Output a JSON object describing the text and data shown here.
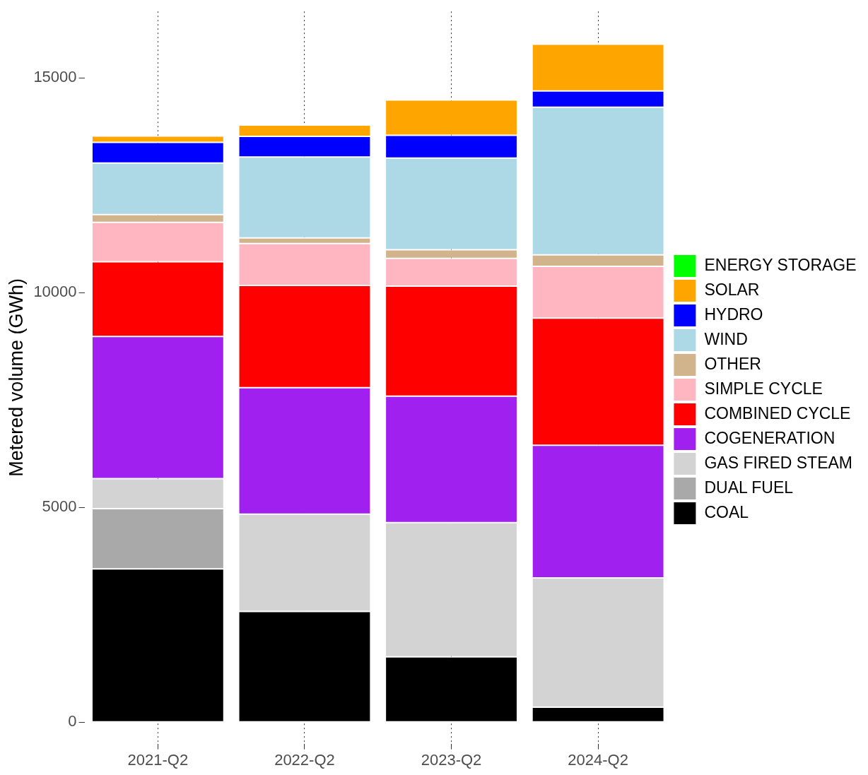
{
  "chart_data": {
    "type": "bar",
    "stacked": true,
    "ylabel": "Metered volume (GWh)",
    "categories": [
      "2021-Q2",
      "2022-Q2",
      "2023-Q2",
      "2024-Q2"
    ],
    "ylim": [
      -500,
      16550
    ],
    "yticks": [
      0,
      5000,
      10000,
      15000
    ],
    "grid": "x",
    "legend": "right",
    "series": [
      {
        "name": "COAL",
        "color": "#000000",
        "values": [
          3570,
          2580,
          1520,
          350
        ]
      },
      {
        "name": "DUAL FUEL",
        "color": "#a9a9a9",
        "values": [
          1400,
          0,
          0,
          0
        ]
      },
      {
        "name": "GAS FIRED STEAM",
        "color": "#d3d3d3",
        "values": [
          700,
          2265,
          3125,
          3010
        ]
      },
      {
        "name": "COGENERATION",
        "color": "#a020f0",
        "values": [
          3310,
          2945,
          2945,
          3090
        ]
      },
      {
        "name": "COMBINED CYCLE",
        "color": "#ff0000",
        "values": [
          1740,
          2380,
          2565,
          2960
        ]
      },
      {
        "name": "SIMPLE CYCLE",
        "color": "#ffb6c1",
        "values": [
          920,
          975,
          645,
          1205
        ]
      },
      {
        "name": "OTHER",
        "color": "#d2b48c",
        "values": [
          180,
          130,
          200,
          265
        ]
      },
      {
        "name": "WIND",
        "color": "#add8e6",
        "values": [
          1200,
          1885,
          2135,
          3440
        ]
      },
      {
        "name": "HYDRO",
        "color": "#0000ff",
        "values": [
          480,
          480,
          530,
          380
        ]
      },
      {
        "name": "SOLAR",
        "color": "#ffa500",
        "values": [
          150,
          265,
          825,
          1090
        ]
      },
      {
        "name": "ENERGY STORAGE",
        "color": "#00ff00",
        "values": [
          0,
          0,
          0,
          0
        ]
      }
    ]
  }
}
